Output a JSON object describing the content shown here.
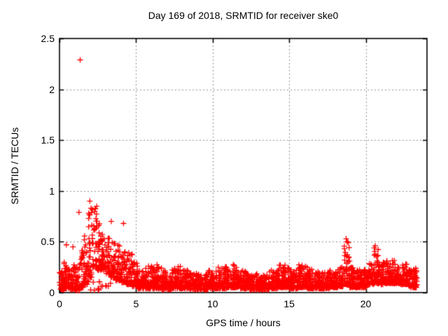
{
  "chart_data": {
    "type": "scatter",
    "title": "Day 169 of 2018, SRMTID for receiver ske0",
    "xlabel": "GPS time / hours",
    "ylabel": "SRMTID / TECUs",
    "xlim": [
      0,
      24
    ],
    "ylim": [
      0,
      2.5
    ],
    "xticks": [
      0,
      5,
      10,
      15,
      20
    ],
    "xtick_labels": [
      "0",
      "5",
      "10",
      "15",
      "20"
    ],
    "yticks": [
      0,
      0.5,
      1,
      1.5,
      2,
      2.5
    ],
    "ytick_labels": [
      "0",
      "0.5",
      "1",
      "1.5",
      "2",
      "2.5"
    ],
    "grid": {
      "on": true,
      "color": "#909090",
      "dash": [
        2,
        3
      ]
    },
    "border_color": "#000000",
    "background_color": "#ffffff",
    "marker": {
      "shape": "plus",
      "color": "#ff0000",
      "size": 9,
      "stroke": 1.3
    },
    "legend": "none",
    "data_x_end": 23.35,
    "seed": 1699,
    "points_per_hour": 118,
    "y_bias_pow": 2.1,
    "envelope": [
      [
        0.0,
        0.3,
        0.03,
        0.22
      ],
      [
        0.3,
        0.7,
        0.04,
        0.3
      ],
      [
        0.7,
        1.0,
        0.03,
        0.28
      ],
      [
        1.0,
        1.3,
        0.02,
        0.26
      ],
      [
        1.3,
        1.6,
        0.05,
        0.45
      ],
      [
        1.6,
        1.9,
        0.08,
        0.62
      ],
      [
        1.9,
        2.15,
        0.15,
        0.8
      ],
      [
        2.15,
        2.45,
        0.25,
        0.85
      ],
      [
        2.45,
        2.75,
        0.22,
        0.68
      ],
      [
        2.75,
        3.05,
        0.22,
        0.58
      ],
      [
        3.05,
        3.35,
        0.18,
        0.55
      ],
      [
        3.35,
        3.65,
        0.15,
        0.5
      ],
      [
        3.65,
        4.0,
        0.12,
        0.47
      ],
      [
        4.0,
        4.35,
        0.1,
        0.42
      ],
      [
        4.35,
        4.75,
        0.08,
        0.4
      ],
      [
        4.75,
        5.1,
        0.06,
        0.3
      ],
      [
        5.1,
        5.6,
        0.04,
        0.22
      ],
      [
        5.6,
        6.1,
        0.04,
        0.27
      ],
      [
        6.1,
        6.7,
        0.04,
        0.28
      ],
      [
        6.7,
        7.3,
        0.03,
        0.22
      ],
      [
        7.3,
        7.9,
        0.04,
        0.27
      ],
      [
        7.9,
        8.4,
        0.04,
        0.24
      ],
      [
        8.4,
        9.1,
        0.03,
        0.2
      ],
      [
        9.1,
        9.7,
        0.03,
        0.18
      ],
      [
        9.7,
        10.3,
        0.04,
        0.22
      ],
      [
        10.3,
        10.9,
        0.04,
        0.26
      ],
      [
        10.9,
        11.3,
        0.05,
        0.22
      ],
      [
        11.3,
        11.8,
        0.05,
        0.28
      ],
      [
        11.8,
        12.4,
        0.04,
        0.22
      ],
      [
        12.4,
        13.1,
        0.03,
        0.19
      ],
      [
        13.1,
        13.7,
        0.03,
        0.18
      ],
      [
        13.7,
        14.3,
        0.04,
        0.22
      ],
      [
        14.3,
        15.0,
        0.05,
        0.28
      ],
      [
        15.0,
        15.6,
        0.04,
        0.24
      ],
      [
        15.6,
        16.2,
        0.05,
        0.29
      ],
      [
        16.2,
        16.9,
        0.04,
        0.23
      ],
      [
        16.9,
        17.6,
        0.04,
        0.2
      ],
      [
        17.6,
        18.2,
        0.05,
        0.23
      ],
      [
        18.2,
        18.55,
        0.06,
        0.3
      ],
      [
        18.55,
        18.95,
        0.08,
        0.5
      ],
      [
        18.95,
        19.5,
        0.05,
        0.25
      ],
      [
        19.5,
        20.1,
        0.05,
        0.23
      ],
      [
        20.1,
        20.5,
        0.08,
        0.31
      ],
      [
        20.5,
        20.85,
        0.09,
        0.44
      ],
      [
        20.85,
        21.3,
        0.08,
        0.3
      ],
      [
        21.3,
        22.3,
        0.09,
        0.32
      ],
      [
        22.3,
        22.8,
        0.08,
        0.28
      ],
      [
        22.8,
        23.35,
        0.05,
        0.24
      ]
    ],
    "sparse_bands": [
      [
        1.9,
        3.4,
        0.02,
        0.12,
        10
      ]
    ],
    "outliers": [
      [
        1.35,
        2.29
      ],
      [
        1.27,
        0.79
      ],
      [
        1.98,
        0.9
      ],
      [
        2.06,
        0.83
      ],
      [
        2.3,
        0.8
      ],
      [
        3.38,
        0.7
      ],
      [
        4.18,
        0.68
      ],
      [
        0.45,
        0.47
      ],
      [
        0.88,
        0.45
      ],
      [
        18.72,
        0.53
      ],
      [
        18.78,
        0.5
      ],
      [
        20.62,
        0.46
      ],
      [
        20.55,
        0.44
      ]
    ]
  }
}
